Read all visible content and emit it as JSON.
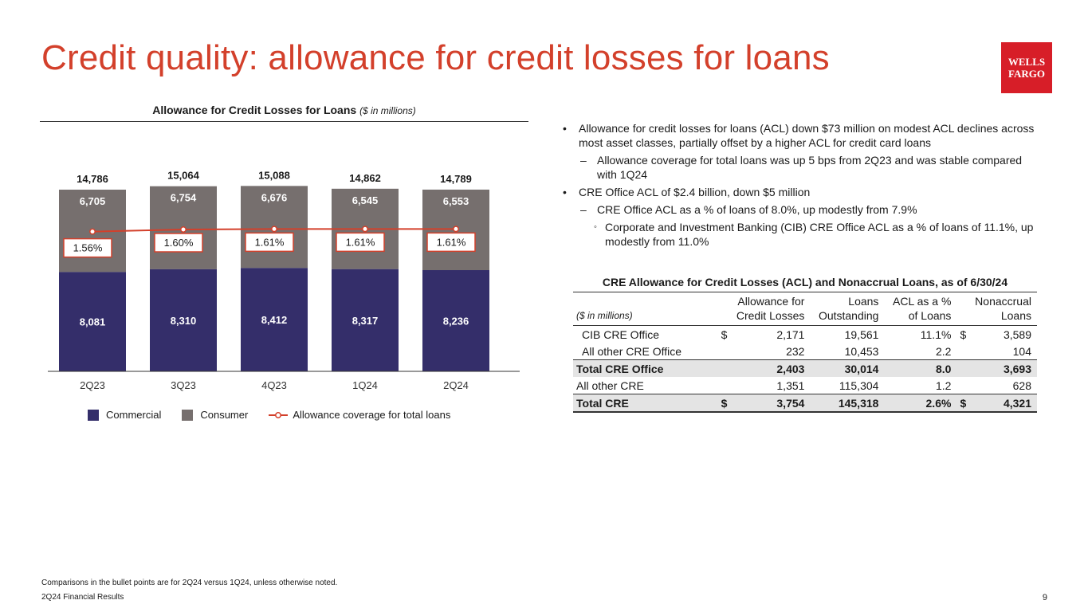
{
  "title": "Credit quality: allowance for credit losses for loans",
  "logo": {
    "line1": "WELLS",
    "line2": "FARGO"
  },
  "colors": {
    "accent": "#d3402b",
    "brand": "#d71e28",
    "commercial": "#342e6a",
    "consumer": "#766f6e",
    "coverage_line": "#d3402b"
  },
  "chart": {
    "title": "Allowance for Credit Losses for Loans",
    "unit": "($ in millions)"
  },
  "chart_data": {
    "type": "bar",
    "stacked": true,
    "title": "Allowance for Credit Losses for Loans ($ in millions)",
    "categories": [
      "2Q23",
      "3Q23",
      "4Q23",
      "1Q24",
      "2Q24"
    ],
    "series": [
      {
        "name": "Commercial",
        "values": [
          8081,
          8310,
          8412,
          8317,
          8236
        ],
        "labels": [
          "8,081",
          "8,310",
          "8,412",
          "8,317",
          "8,236"
        ]
      },
      {
        "name": "Consumer",
        "values": [
          6705,
          6754,
          6676,
          6545,
          6553
        ],
        "labels": [
          "6,705",
          "6,754",
          "6,676",
          "6,545",
          "6,553"
        ]
      }
    ],
    "totals": {
      "values": [
        14786,
        15064,
        15088,
        14862,
        14789
      ],
      "labels": [
        "14,786",
        "15,064",
        "15,088",
        "14,862",
        "14,789"
      ]
    },
    "line": {
      "name": "Allowance coverage for total loans",
      "values": [
        1.56,
        1.6,
        1.61,
        1.61,
        1.61
      ],
      "labels": [
        "1.56%",
        "1.60%",
        "1.61%",
        "1.61%",
        "1.61%"
      ]
    },
    "ylim": [
      0,
      16500
    ],
    "legend": "bottom",
    "grid": false
  },
  "legend": {
    "commercial": "Commercial",
    "consumer": "Consumer",
    "coverage": "Allowance coverage for total loans"
  },
  "bullets": [
    {
      "level": 1,
      "text": "Allowance for credit losses for loans (ACL) down $73 million on modest ACL declines across most asset classes, partially offset by a higher ACL for credit card loans"
    },
    {
      "level": 2,
      "text": "Allowance coverage for total loans was up 5 bps from 2Q23 and was stable compared with 1Q24"
    },
    {
      "level": 1,
      "text": "CRE Office ACL of $2.4 billion, down $5 million"
    },
    {
      "level": 2,
      "text": "CRE Office ACL as a % of loans of 8.0%, up modestly from 7.9%"
    },
    {
      "level": 3,
      "text": "Corporate and Investment Banking (CIB) CRE Office ACL as a % of loans of 11.1%, up modestly from 11.0%"
    }
  ],
  "bullet_markers": {
    "l1": "•",
    "l2": "–",
    "l3": "◦"
  },
  "table": {
    "title": "CRE Allowance for Credit Losses (ACL) and Nonaccrual Loans, as of 6/30/24",
    "unit_label": "($ in millions)",
    "headers": [
      "Allowance for Credit Losses",
      "Loans Outstanding",
      "ACL as a % of Loans",
      "Nonaccrual Loans"
    ],
    "rows": [
      {
        "label": "CIB CRE Office",
        "dollar1": "$",
        "acl": "2,171",
        "loans": "19,561",
        "pct": "11.1%",
        "dollar2": "$",
        "nonaccrual": "3,589"
      },
      {
        "label": "All other CRE Office",
        "dollar1": "",
        "acl": "232",
        "loans": "10,453",
        "pct": "2.2",
        "dollar2": "",
        "nonaccrual": "104"
      },
      {
        "label": "Total CRE Office",
        "dollar1": "",
        "acl": "2,403",
        "loans": "30,014",
        "pct": "8.0",
        "dollar2": "",
        "nonaccrual": "3,693"
      },
      {
        "label": "All other CRE",
        "dollar1": "",
        "acl": "1,351",
        "loans": "115,304",
        "pct": "1.2",
        "dollar2": "",
        "nonaccrual": "628"
      },
      {
        "label": "Total CRE",
        "dollar1": "$",
        "acl": "3,754",
        "loans": "145,318",
        "pct": "2.6%",
        "dollar2": "$",
        "nonaccrual": "4,321"
      }
    ]
  },
  "footnote": "Comparisons in the bullet points are for 2Q24 versus 1Q24, unless otherwise noted.",
  "footer": "2Q24 Financial Results",
  "page_number": "9"
}
